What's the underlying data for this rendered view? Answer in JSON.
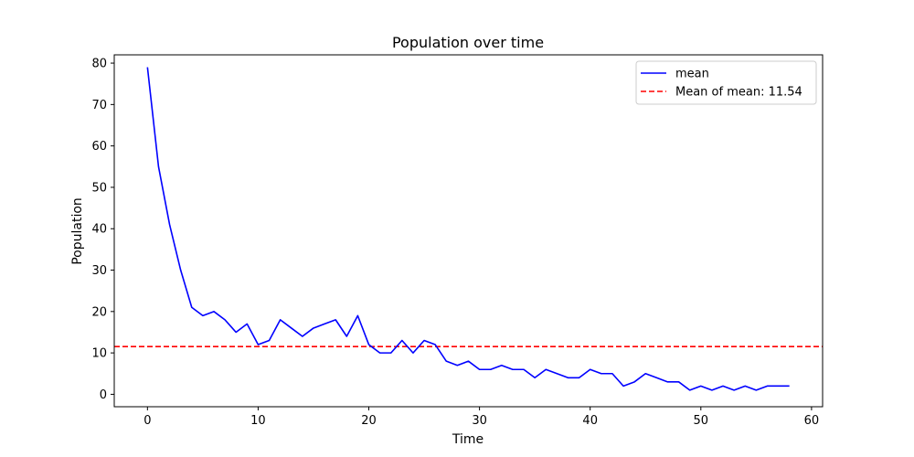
{
  "chart_data": {
    "type": "line",
    "title": "Population over time",
    "xlabel": "Time",
    "ylabel": "Population",
    "xlim": [
      -3,
      61
    ],
    "ylim": [
      -3,
      82
    ],
    "xticks": [
      0,
      10,
      20,
      30,
      40,
      50,
      60
    ],
    "yticks": [
      0,
      10,
      20,
      30,
      40,
      50,
      60,
      70,
      80
    ],
    "grid": false,
    "legend_position": "top-right",
    "series": [
      {
        "name": "mean",
        "color": "#0000ff",
        "style": "solid",
        "x": [
          0,
          1,
          2,
          3,
          4,
          5,
          6,
          7,
          8,
          9,
          10,
          11,
          12,
          13,
          14,
          15,
          16,
          17,
          18,
          19,
          20,
          21,
          22,
          23,
          24,
          25,
          26,
          27,
          28,
          29,
          30,
          31,
          32,
          33,
          34,
          35,
          36,
          37,
          38,
          39,
          40,
          41,
          42,
          43,
          44,
          45,
          46,
          47,
          48,
          49,
          50,
          51,
          52,
          53,
          54,
          55,
          56,
          57,
          58
        ],
        "y": [
          79,
          55,
          41,
          30,
          21,
          19,
          20,
          18,
          15,
          17,
          12,
          13,
          18,
          16,
          14,
          16,
          17,
          18,
          14,
          19,
          12,
          10,
          10,
          13,
          10,
          13,
          12,
          8,
          7,
          8,
          6,
          6,
          7,
          6,
          6,
          4,
          6,
          5,
          4,
          4,
          6,
          5,
          5,
          2,
          3,
          5,
          4,
          3,
          3,
          1,
          2,
          1,
          2,
          1,
          2,
          1,
          2,
          2,
          2
        ]
      }
    ],
    "hlines": [
      {
        "name": "Mean of mean: 11.54",
        "y": 11.54,
        "color": "#ff0000",
        "style": "dashed"
      }
    ]
  }
}
